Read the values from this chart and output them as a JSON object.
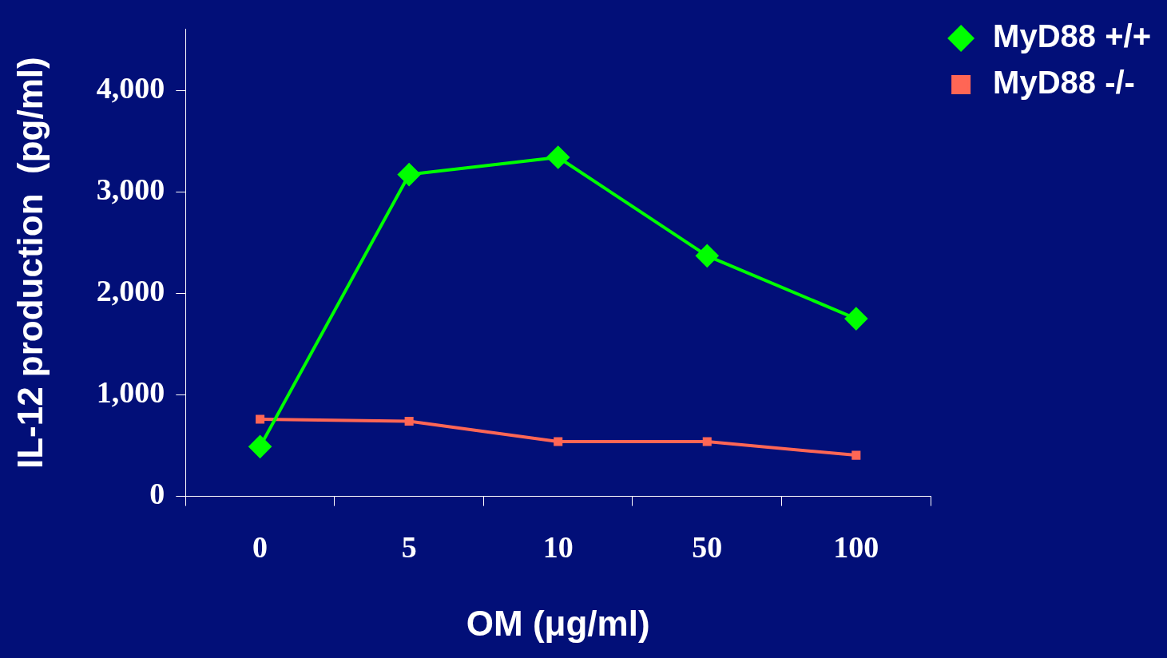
{
  "chart_data": {
    "type": "line",
    "xlabel": "OM (μg/ml)",
    "ylabel": "IL-12 production  (pg/ml)",
    "categories": [
      "0",
      "5",
      "10",
      "50",
      "100"
    ],
    "series": [
      {
        "name": "MyD88 +/+",
        "color": "#00ff00",
        "marker": "diamond",
        "values": [
          490,
          3170,
          3340,
          2370,
          1750
        ]
      },
      {
        "name": "MyD88 -/-",
        "color": "#ff6655",
        "marker": "square",
        "values": [
          760,
          740,
          540,
          540,
          405
        ]
      }
    ],
    "ylim": [
      0,
      4600
    ],
    "yticks": [
      0,
      {
        "value": 1000,
        "label": "1,000"
      },
      {
        "value": 2000,
        "label": "2,000"
      },
      {
        "value": 3000,
        "label": "3,000"
      },
      {
        "value": 4000,
        "label": "4,000"
      }
    ],
    "grid": false,
    "legend": "right",
    "line_style": "solid"
  }
}
